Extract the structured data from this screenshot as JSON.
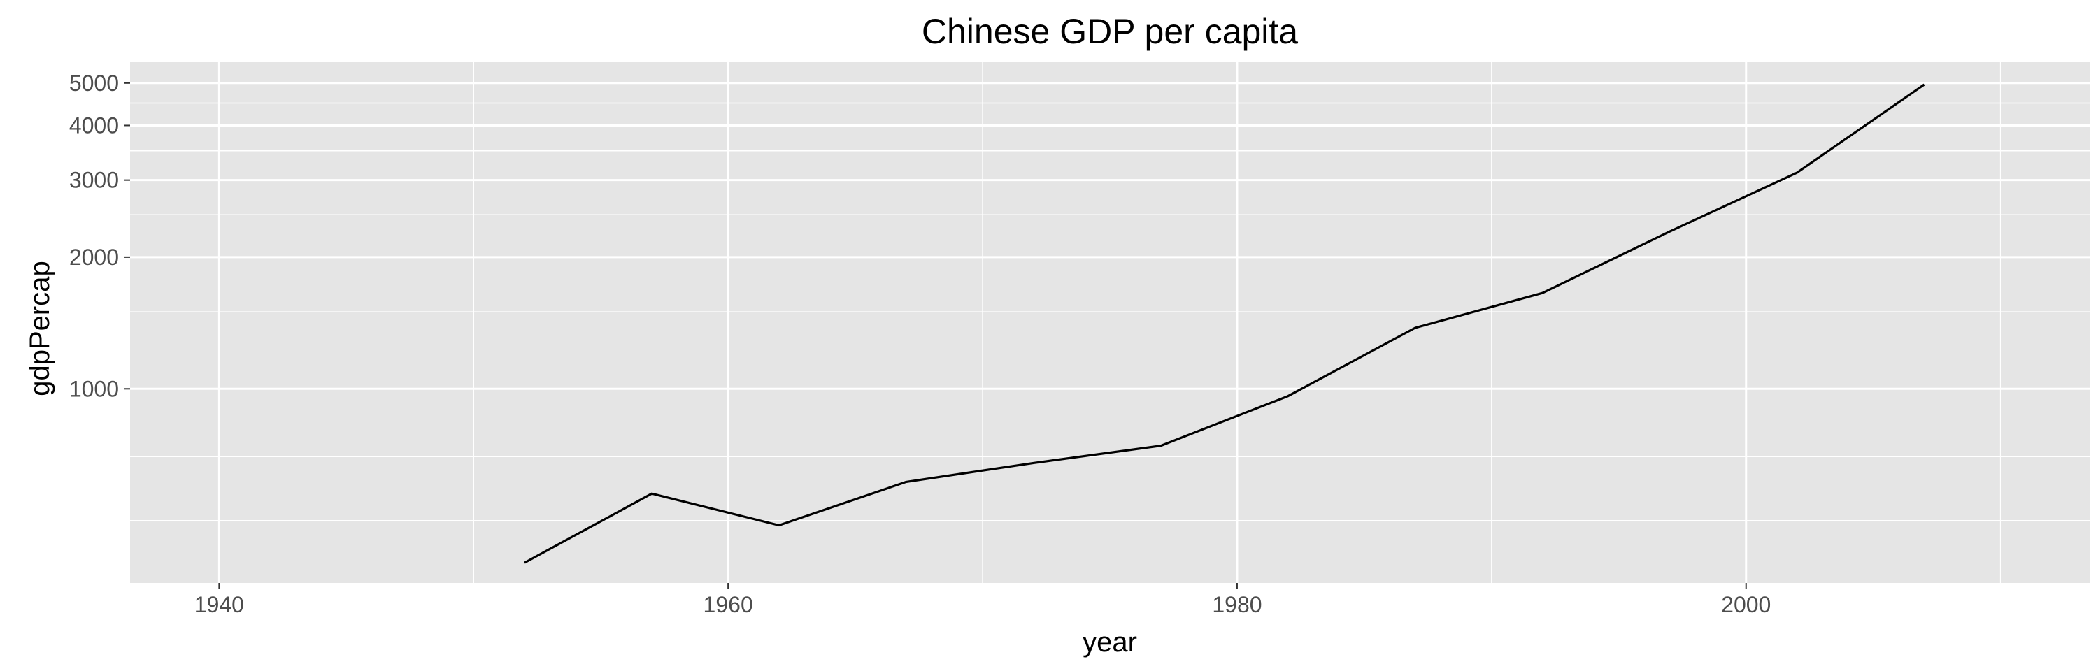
{
  "chart_data": {
    "type": "line",
    "title": "Chinese GDP per capita",
    "xlabel": "year",
    "ylabel": "gdpPercap",
    "x_scale": "linear",
    "y_scale": "log10",
    "xlim": [
      1936.5,
      2013.5
    ],
    "ylim": [
      360,
      5600
    ],
    "x_ticks": [
      {
        "value": 1940,
        "label": "1940"
      },
      {
        "value": 1960,
        "label": "1960"
      },
      {
        "value": 1980,
        "label": "1980"
      },
      {
        "value": 2000,
        "label": "2000"
      }
    ],
    "x_minor_ticks": [
      1950,
      1970,
      1990,
      2010
    ],
    "y_ticks": [
      {
        "value": 1000,
        "label": "1000"
      },
      {
        "value": 2000,
        "label": "2000"
      },
      {
        "value": 3000,
        "label": "3000"
      },
      {
        "value": 4000,
        "label": "4000"
      },
      {
        "value": 5000,
        "label": "5000"
      }
    ],
    "y_minor_ticks": [
      500,
      700,
      1500,
      2500,
      3500,
      4500
    ],
    "grid": true,
    "panel_background": "#e5e5e5",
    "grid_color": "#ffffff",
    "line_color": "#000000",
    "series": [
      {
        "x": [
          1952,
          1957,
          1962,
          1967,
          1972,
          1977,
          1982,
          1987,
          1992,
          1997,
          2002,
          2007
        ],
        "values": [
          400.45,
          575.99,
          487.67,
          612.71,
          676.9,
          741.24,
          962.42,
          1378.9,
          1655.78,
          2289.23,
          3119.28,
          4959.11
        ]
      }
    ]
  }
}
